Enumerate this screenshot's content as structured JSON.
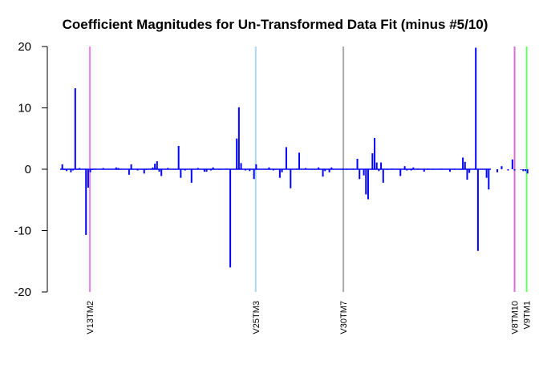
{
  "chart_data": {
    "type": "bar",
    "title": "Coefficient Magnitudes for Un-Transformed Data Fit (minus #5/10)",
    "xlabel": "",
    "ylabel": "",
    "ylim": [
      -20,
      20
    ],
    "yticks": [
      -20,
      -10,
      0,
      10,
      20
    ],
    "n_coefficients": 200,
    "series": [
      {
        "name": "",
        "color": "#0000ff",
        "points": [
          [
            1,
            0.8
          ],
          [
            2,
            -0.1
          ],
          [
            3,
            -0.3
          ],
          [
            5,
            -0.5
          ],
          [
            6,
            -0.2
          ],
          [
            7,
            13.2
          ],
          [
            8,
            -0.1
          ],
          [
            9,
            0.2
          ],
          [
            12,
            -10.7
          ],
          [
            13,
            -3.0
          ],
          [
            14,
            -0.5
          ],
          [
            15,
            -0.1
          ],
          [
            16,
            0.1
          ],
          [
            20,
            0.2
          ],
          [
            26,
            0.3
          ],
          [
            27,
            0.2
          ],
          [
            32,
            -0.9
          ],
          [
            33,
            0.8
          ],
          [
            36,
            -0.2
          ],
          [
            39,
            -0.7
          ],
          [
            40,
            -0.1
          ],
          [
            42,
            0.1
          ],
          [
            43,
            0.3
          ],
          [
            44,
            0.9
          ],
          [
            45,
            1.3
          ],
          [
            46,
            -0.4
          ],
          [
            47,
            -1.1
          ],
          [
            50,
            0.2
          ],
          [
            55,
            3.8
          ],
          [
            56,
            -1.4
          ],
          [
            58,
            -0.2
          ],
          [
            61,
            -2.2
          ],
          [
            64,
            0.2
          ],
          [
            67,
            -0.4
          ],
          [
            68,
            -0.4
          ],
          [
            70,
            -0.2
          ],
          [
            71,
            0.3
          ],
          [
            74,
            -0.1
          ],
          [
            77,
            0.1
          ],
          [
            79,
            -16.0
          ],
          [
            82,
            5.0
          ],
          [
            83,
            10.1
          ],
          [
            84,
            1.0
          ],
          [
            86,
            -0.2
          ],
          [
            88,
            -0.3
          ],
          [
            90,
            -1.6
          ],
          [
            91,
            0.8
          ],
          [
            97,
            0.3
          ],
          [
            99,
            -0.2
          ],
          [
            102,
            -1.4
          ],
          [
            103,
            -0.5
          ],
          [
            105,
            3.6
          ],
          [
            107,
            -3.1
          ],
          [
            110,
            0.1
          ],
          [
            111,
            2.7
          ],
          [
            114,
            0.2
          ],
          [
            117,
            -0.1
          ],
          [
            120,
            0.3
          ],
          [
            122,
            -1.2
          ],
          [
            123,
            -0.3
          ],
          [
            125,
            -0.5
          ],
          [
            126,
            0.3
          ],
          [
            131,
            -0.1
          ],
          [
            133,
            -0.1
          ],
          [
            136,
            0.1
          ],
          [
            138,
            1.7
          ],
          [
            139,
            -1.6
          ],
          [
            141,
            -1.0
          ],
          [
            142,
            -4.1
          ],
          [
            143,
            -4.9
          ],
          [
            145,
            2.6
          ],
          [
            146,
            5.1
          ],
          [
            147,
            1.1
          ],
          [
            148,
            -0.3
          ],
          [
            149,
            1.1
          ],
          [
            150,
            -2.2
          ],
          [
            152,
            -0.1
          ],
          [
            154,
            0.1
          ],
          [
            158,
            -1.1
          ],
          [
            160,
            0.5
          ],
          [
            161,
            -0.2
          ],
          [
            163,
            -0.2
          ],
          [
            164,
            0.3
          ],
          [
            166,
            0.1
          ],
          [
            169,
            -0.4
          ],
          [
            171,
            0.1
          ],
          [
            173,
            -0.1
          ],
          [
            177,
            0.1
          ],
          [
            181,
            -0.4
          ],
          [
            183,
            -0.1
          ],
          [
            186,
            -0.1
          ],
          [
            187,
            1.9
          ],
          [
            188,
            1.2
          ],
          [
            189,
            -1.7
          ],
          [
            190,
            -0.6
          ],
          [
            193,
            19.8
          ],
          [
            194,
            -13.3
          ],
          [
            198,
            -1.4
          ],
          [
            199,
            -3.3
          ],
          [
            203,
            -0.5
          ],
          [
            205,
            0.5
          ],
          [
            208,
            -0.2
          ],
          [
            210,
            1.6
          ],
          [
            211,
            -0.2
          ],
          [
            214,
            -0.1
          ],
          [
            215,
            -0.3
          ],
          [
            216,
            -0.3
          ],
          [
            217,
            -0.7
          ]
        ]
      }
    ],
    "markers": [
      {
        "label": "V13TM2",
        "x": 13.8,
        "color": "#ee82ee"
      },
      {
        "label": "V25TM3",
        "x": 90.8,
        "color": "#add8e6"
      },
      {
        "label": "V30TM7",
        "x": 131.5,
        "color": "#a9a9a9"
      },
      {
        "label": "V8TM10",
        "x": 211.0,
        "color": "#da70d6"
      },
      {
        "label": "V9TM1",
        "x": 216.6,
        "color": "#66ff66"
      }
    ],
    "grid": false,
    "legend": "none"
  }
}
